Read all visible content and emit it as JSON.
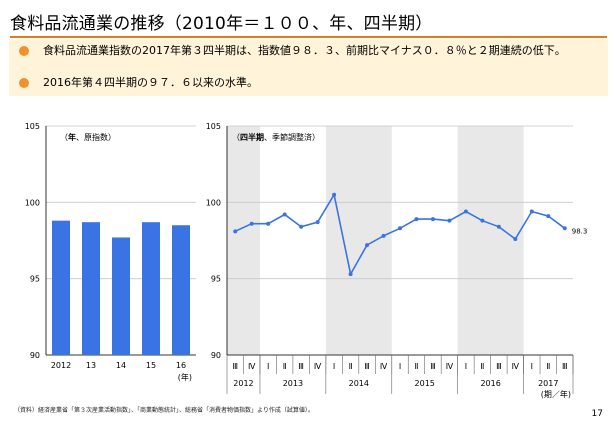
{
  "title": "食料品流通業の推移（2010年＝１００、年、四半期）",
  "bullets": [
    "食料品流通業指数の2017年第３四半期は、指数値９８．３、前期比マイナス０．８％と２期連続の低下。",
    "2016年第４四半期の９７．６以来の水準。"
  ],
  "colors": {
    "accent": "#e07b1f",
    "bullet": "#f0912e",
    "summary_bg": "#fff3d9",
    "series": "#3a73e4",
    "shade": "#e8e8e8"
  },
  "chart_data": [
    {
      "type": "bar",
      "note": "（年、原指数）",
      "note_bold": "年",
      "categories": [
        "2012",
        "13",
        "14",
        "15",
        "16"
      ],
      "values": [
        98.8,
        98.7,
        97.7,
        98.7,
        98.5
      ],
      "x_unit": "(年)",
      "ylim": [
        90,
        105
      ],
      "yticks": [
        90,
        95,
        100,
        105
      ],
      "grid": true
    },
    {
      "type": "line",
      "note": "（四半期、季節調整済）",
      "note_bold": "四半期",
      "quarters": [
        "Ⅲ",
        "Ⅳ",
        "Ⅰ",
        "Ⅱ",
        "Ⅲ",
        "Ⅳ",
        "Ⅰ",
        "Ⅱ",
        "Ⅲ",
        "Ⅳ",
        "Ⅰ",
        "Ⅱ",
        "Ⅲ",
        "Ⅳ",
        "Ⅰ",
        "Ⅱ",
        "Ⅲ",
        "Ⅳ",
        "Ⅰ",
        "Ⅱ",
        "Ⅲ"
      ],
      "values": [
        98.1,
        98.6,
        98.6,
        99.2,
        98.4,
        98.7,
        100.5,
        95.3,
        97.2,
        97.8,
        98.3,
        98.9,
        98.9,
        98.8,
        99.4,
        98.8,
        98.4,
        97.6,
        99.4,
        99.1,
        98.3
      ],
      "years": [
        {
          "label": "2012",
          "start": 0,
          "count": 2,
          "shaded": true
        },
        {
          "label": "2013",
          "start": 2,
          "count": 4,
          "shaded": false
        },
        {
          "label": "2014",
          "start": 6,
          "count": 4,
          "shaded": true
        },
        {
          "label": "2015",
          "start": 10,
          "count": 4,
          "shaded": false
        },
        {
          "label": "2016",
          "start": 14,
          "count": 4,
          "shaded": true
        },
        {
          "label": "2017",
          "start": 18,
          "count": 3,
          "shaded": false
        }
      ],
      "x_unit": "(期／年)",
      "last_label": "98.3",
      "ylim": [
        90,
        105
      ],
      "yticks": [
        90,
        95,
        100,
        105
      ],
      "grid": true
    }
  ],
  "footnote": "（資料）経済産業省「第３次産業活動指数」、「商業動態統計」、総務省「消費者物価指数」より作成（試算値）。",
  "page_number": "17"
}
